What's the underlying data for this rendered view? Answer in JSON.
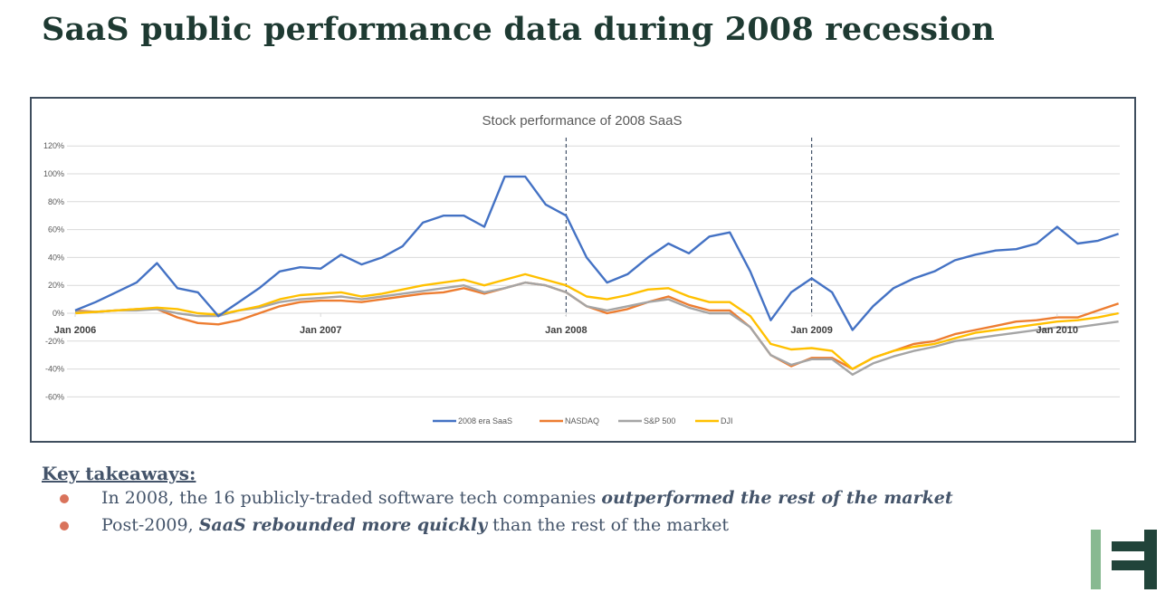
{
  "page": {
    "title": "SaaS public performance data during 2008 recession"
  },
  "takeaways": {
    "heading": "Key takeaways:",
    "items": [
      {
        "pre": "In 2008, the 16 publicly-traded software tech companies ",
        "bold": "outperformed the rest of the market",
        "post": ""
      },
      {
        "pre": "Post-2009, ",
        "bold": "SaaS rebounded more quickly",
        "post": " than the rest of the market"
      }
    ],
    "bullet_color": "#d9735b"
  },
  "logo": {
    "colors": [
      "#88b991",
      "#21443a"
    ]
  },
  "chart_data": {
    "type": "line",
    "title": "Stock performance of 2008 SaaS",
    "xlabel": "",
    "ylabel": "",
    "ylim": [
      -60,
      120
    ],
    "yticks": [
      "120%",
      "100%",
      "80%",
      "60%",
      "40%",
      "20%",
      "0%",
      "-20%",
      "-40%",
      "-60%"
    ],
    "ytick_values": [
      120,
      100,
      80,
      60,
      40,
      20,
      0,
      -20,
      -40,
      -60
    ],
    "xtick_labels": [
      "Jan 2006",
      "Jan 2007",
      "Jan 2008",
      "Jan 2009",
      "Jan 2010"
    ],
    "xtick_dates": [
      "2006-01",
      "2007-01",
      "2008-01",
      "2009-01",
      "2010-01"
    ],
    "vertical_markers": [
      "2008-01",
      "2009-01"
    ],
    "grid": true,
    "legend": "bottom",
    "x_start": "2006-01",
    "x_step": "monthly",
    "series": [
      {
        "name": "2008 era SaaS",
        "color": "#4472c4",
        "values": [
          2,
          8,
          15,
          22,
          36,
          18,
          15,
          -2,
          8,
          18,
          30,
          33,
          32,
          42,
          35,
          40,
          48,
          65,
          70,
          70,
          62,
          98,
          98,
          78,
          70,
          40,
          22,
          28,
          40,
          50,
          43,
          55,
          58,
          30,
          -5,
          15,
          25,
          15,
          -12,
          5,
          18,
          25,
          30,
          38,
          42,
          45,
          46,
          50,
          62,
          50,
          52,
          57
        ]
      },
      {
        "name": "NASDAQ",
        "color": "#ed7d31",
        "values": [
          2,
          1,
          2,
          3,
          3,
          -3,
          -7,
          -8,
          -5,
          0,
          5,
          8,
          9,
          9,
          8,
          10,
          12,
          14,
          15,
          18,
          14,
          18,
          22,
          20,
          15,
          5,
          0,
          3,
          8,
          12,
          6,
          2,
          2,
          -10,
          -30,
          -38,
          -32,
          -32,
          -40,
          -32,
          -27,
          -22,
          -20,
          -15,
          -12,
          -9,
          -6,
          -5,
          -3,
          -3,
          2,
          7
        ]
      },
      {
        "name": "S&P 500",
        "color": "#a5a5a5",
        "values": [
          1,
          1,
          2,
          2,
          3,
          0,
          -2,
          -2,
          2,
          4,
          8,
          10,
          11,
          12,
          10,
          12,
          14,
          16,
          18,
          20,
          15,
          18,
          22,
          20,
          15,
          5,
          2,
          5,
          8,
          10,
          4,
          0,
          0,
          -10,
          -30,
          -37,
          -33,
          -33,
          -44,
          -36,
          -31,
          -27,
          -24,
          -20,
          -18,
          -16,
          -14,
          -12,
          -10,
          -10,
          -8,
          -6
        ]
      },
      {
        "name": "DJI",
        "color": "#ffc000",
        "values": [
          0,
          1,
          2,
          3,
          4,
          3,
          0,
          -1,
          2,
          5,
          10,
          13,
          14,
          15,
          12,
          14,
          17,
          20,
          22,
          24,
          20,
          24,
          28,
          24,
          20,
          12,
          10,
          13,
          17,
          18,
          12,
          8,
          8,
          -2,
          -22,
          -26,
          -25,
          -27,
          -40,
          -32,
          -27,
          -24,
          -22,
          -18,
          -14,
          -12,
          -10,
          -8,
          -6,
          -5,
          -3,
          0
        ]
      }
    ]
  }
}
